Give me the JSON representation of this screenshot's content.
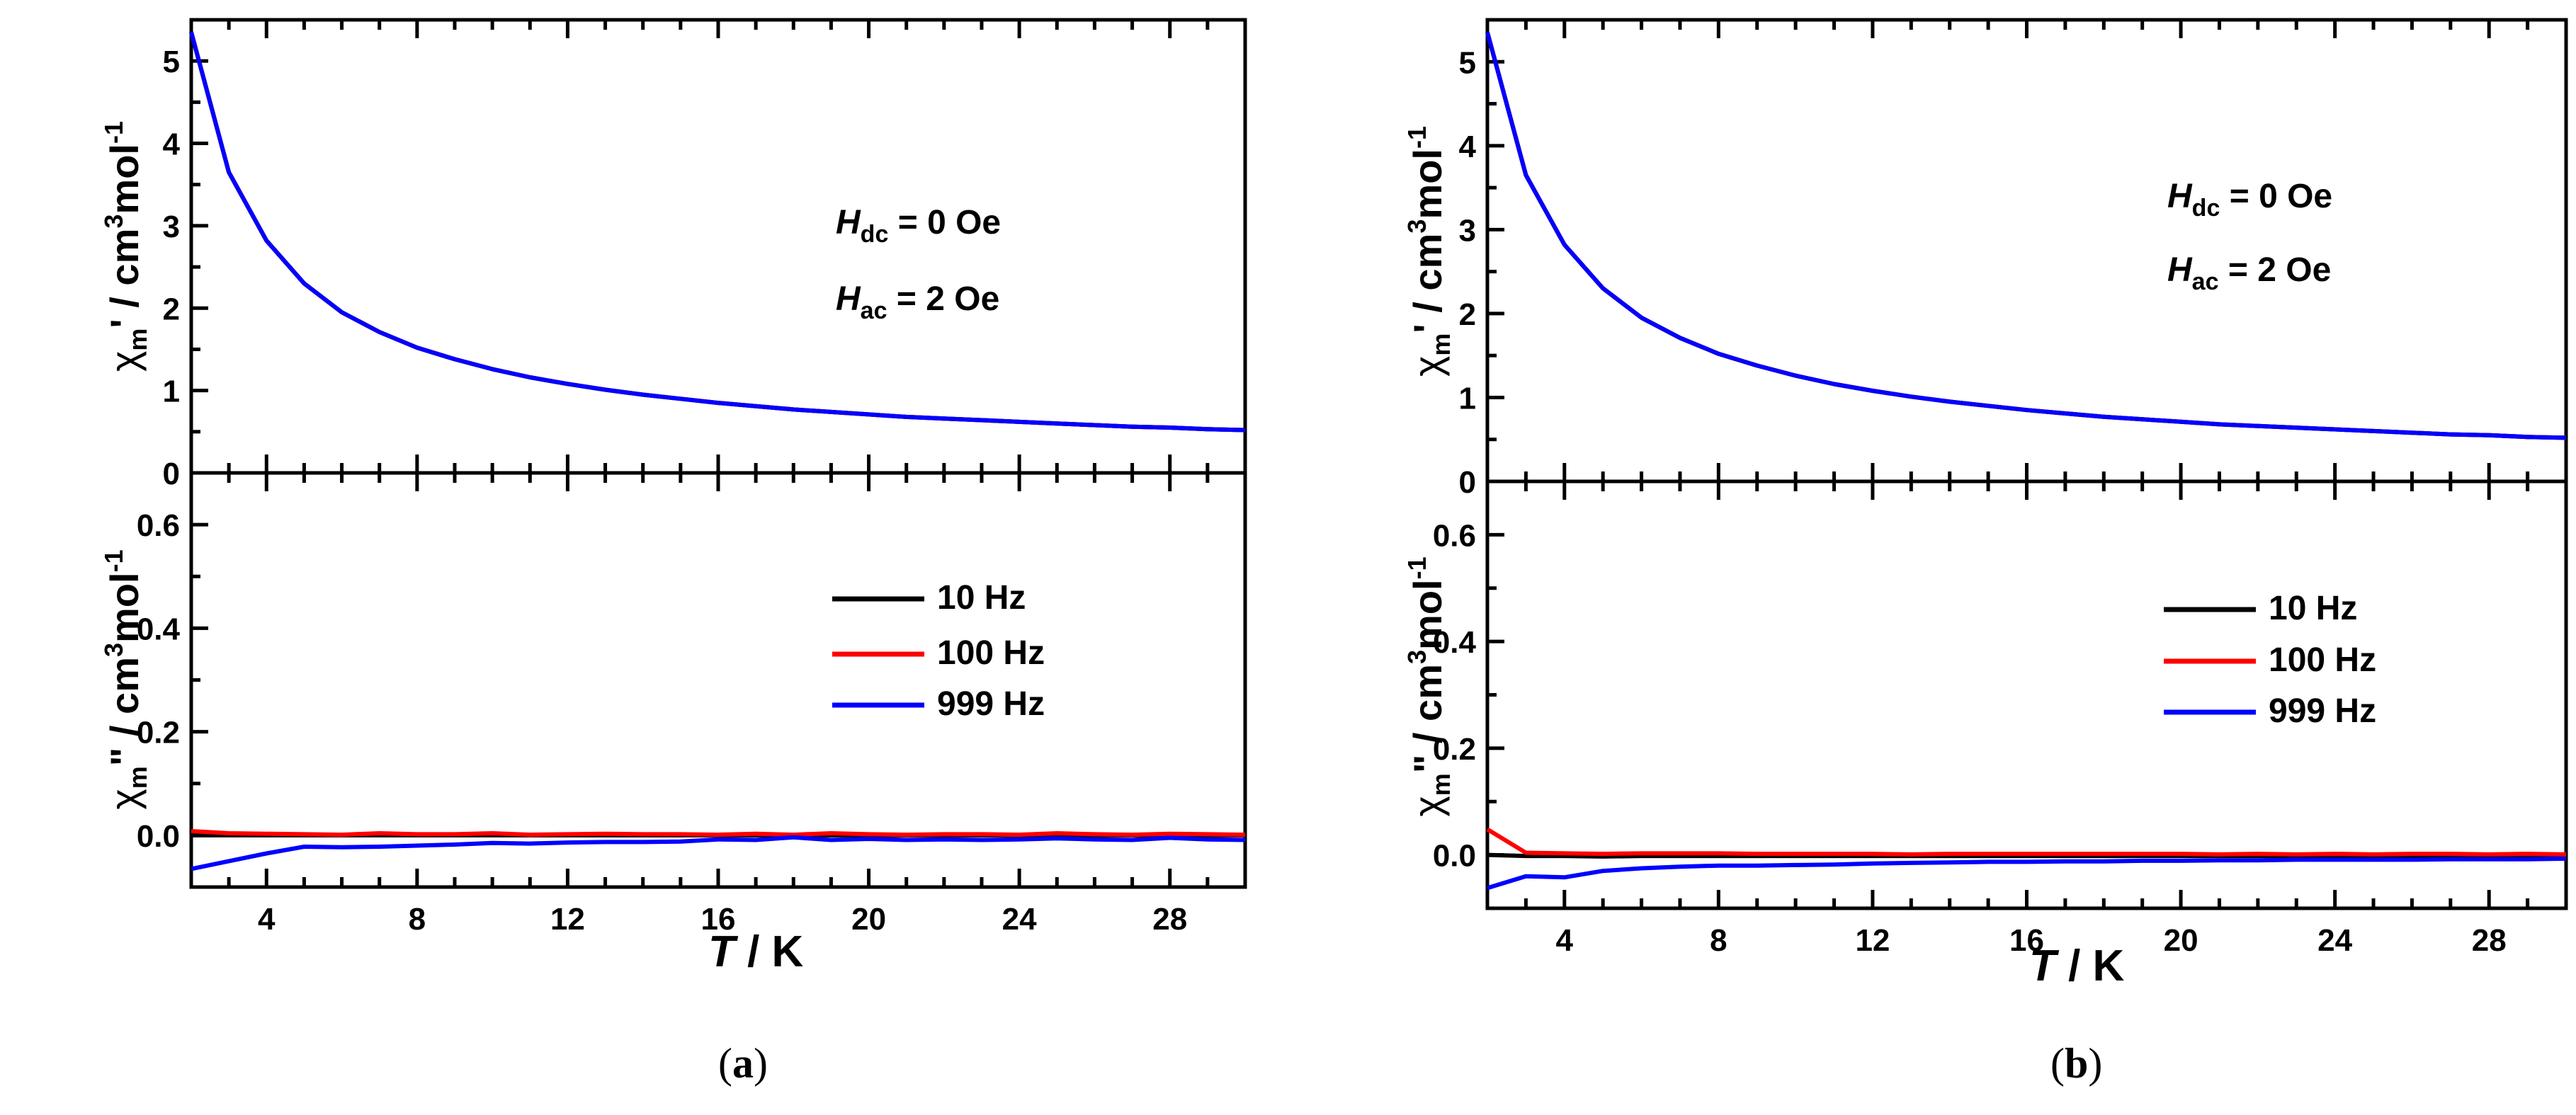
{
  "chart_data": [
    {
      "type": "line",
      "panel_label_open": "(",
      "panel_label": "a",
      "panel_label_close": ")",
      "xlabel_italic": "T",
      "xlabel_rest": " / K",
      "xlim": [
        2,
        30
      ],
      "x_ticks": [
        4,
        8,
        12,
        16,
        20,
        24,
        28
      ],
      "x_tick_labels": [
        "4",
        "8",
        "12",
        "16",
        "20",
        "24",
        "28"
      ],
      "top": {
        "ylabel_chi": "χ",
        "ylabel_sub": "m",
        "ylabel_prime": "'",
        "ylabel_unit": " / cm",
        "ylabel_sup3": "3",
        "ylabel_mol": "mol",
        "ylabel_sup": "-1",
        "ylim": [
          0,
          5.5
        ],
        "y_ticks": [
          0,
          1,
          2,
          3,
          4,
          5
        ],
        "y_tick_labels": [
          "0",
          "1",
          "2",
          "3",
          "4",
          "5"
        ],
        "annotations": [
          {
            "italic": "H",
            "sub": "dc",
            "text": " = 0 Oe"
          },
          {
            "italic": "H",
            "sub": "ac",
            "text": " = 2 Oe"
          }
        ],
        "x": [
          2,
          3,
          4,
          5,
          6,
          7,
          8,
          9,
          10,
          11,
          12,
          13,
          14,
          15,
          16,
          17,
          18,
          19,
          20,
          21,
          22,
          23,
          24,
          25,
          26,
          27,
          28,
          29,
          30
        ],
        "series": [
          {
            "name": "10 Hz",
            "color": "#000000",
            "values": [
              5.35,
              3.65,
              2.82,
              2.3,
              1.95,
              1.71,
              1.52,
              1.38,
              1.26,
              1.16,
              1.08,
              1.01,
              0.95,
              0.9,
              0.85,
              0.81,
              0.77,
              0.74,
              0.71,
              0.68,
              0.66,
              0.64,
              0.62,
              0.6,
              0.58,
              0.56,
              0.55,
              0.53,
              0.52
            ]
          },
          {
            "name": "100 Hz",
            "color": "#ff0000",
            "values": [
              5.35,
              3.65,
              2.82,
              2.3,
              1.95,
              1.71,
              1.52,
              1.38,
              1.26,
              1.16,
              1.08,
              1.01,
              0.95,
              0.9,
              0.85,
              0.81,
              0.77,
              0.74,
              0.71,
              0.68,
              0.66,
              0.64,
              0.62,
              0.6,
              0.58,
              0.56,
              0.55,
              0.53,
              0.52
            ]
          },
          {
            "name": "999 Hz",
            "color": "#0000ff",
            "values": [
              5.35,
              3.65,
              2.82,
              2.3,
              1.95,
              1.71,
              1.52,
              1.38,
              1.26,
              1.16,
              1.08,
              1.01,
              0.95,
              0.9,
              0.85,
              0.81,
              0.77,
              0.74,
              0.71,
              0.68,
              0.66,
              0.64,
              0.62,
              0.6,
              0.58,
              0.56,
              0.55,
              0.53,
              0.52
            ]
          }
        ]
      },
      "bottom": {
        "ylabel_chi": "χ",
        "ylabel_sub": "m",
        "ylabel_prime": "\"",
        "ylabel_unit": " / cm",
        "ylabel_sup3": "3",
        "ylabel_mol": "mol",
        "ylabel_sup": "-1",
        "ylim": [
          -0.1,
          0.7
        ],
        "y_ticks": [
          0.0,
          0.2,
          0.4,
          0.6
        ],
        "y_tick_labels": [
          "0.0",
          "0.2",
          "0.4",
          "0.6"
        ],
        "legend_position": "center-right",
        "x": [
          2,
          3,
          4,
          5,
          6,
          7,
          8,
          9,
          10,
          11,
          12,
          13,
          14,
          15,
          16,
          17,
          18,
          19,
          20,
          21,
          22,
          23,
          24,
          25,
          26,
          27,
          28,
          29,
          30
        ],
        "series": [
          {
            "name": "10 Hz",
            "color": "#000000",
            "values": [
              0.0,
              0.0,
              0.0,
              0.0,
              0.0,
              0.0,
              0.0,
              0.0,
              0.0,
              0.0,
              0.0,
              0.0,
              0.0,
              0.0,
              0.0,
              0.0,
              0.0,
              0.0,
              0.0,
              0.0,
              0.0,
              0.0,
              0.0,
              0.0,
              0.0,
              0.0,
              0.0,
              0.0,
              0.0
            ]
          },
          {
            "name": "100 Hz",
            "color": "#ff0000",
            "values": [
              0.008,
              0.004,
              0.003,
              0.002,
              0.001,
              0.004,
              0.002,
              0.002,
              0.004,
              0.001,
              0.002,
              0.003,
              0.002,
              0.002,
              0.001,
              0.003,
              0.001,
              0.004,
              0.002,
              0.001,
              0.002,
              0.002,
              0.001,
              0.004,
              0.002,
              0.001,
              0.003,
              0.002,
              0.001
            ]
          },
          {
            "name": "999 Hz",
            "color": "#0000ff",
            "values": [
              -0.065,
              -0.05,
              -0.035,
              -0.022,
              -0.023,
              -0.022,
              -0.02,
              -0.018,
              -0.015,
              -0.016,
              -0.014,
              -0.013,
              -0.013,
              -0.012,
              -0.008,
              -0.009,
              -0.004,
              -0.009,
              -0.007,
              -0.009,
              -0.008,
              -0.009,
              -0.008,
              -0.006,
              -0.008,
              -0.009,
              -0.005,
              -0.008,
              -0.009
            ]
          }
        ]
      }
    },
    {
      "type": "line",
      "panel_label_open": "(",
      "panel_label": "b",
      "panel_label_close": ")",
      "xlabel_italic": "T",
      "xlabel_rest": " / K",
      "xlim": [
        2,
        30
      ],
      "x_ticks": [
        4,
        8,
        12,
        16,
        20,
        24,
        28
      ],
      "x_tick_labels": [
        "4",
        "8",
        "12",
        "16",
        "20",
        "24",
        "28"
      ],
      "top": {
        "ylabel_chi": "χ",
        "ylabel_sub": "m",
        "ylabel_prime": "'",
        "ylabel_unit": " / cm",
        "ylabel_sup3": "3",
        "ylabel_mol": "mol",
        "ylabel_sup": "-1",
        "ylim": [
          0,
          5.5
        ],
        "y_ticks": [
          0,
          1,
          2,
          3,
          4,
          5
        ],
        "y_tick_labels": [
          "0",
          "1",
          "2",
          "3",
          "4",
          "5"
        ],
        "annotations": [
          {
            "italic": "H",
            "sub": "dc",
            "text": " = 0 Oe"
          },
          {
            "italic": "H",
            "sub": "ac",
            "text": " = 2 Oe"
          }
        ],
        "x": [
          2,
          3,
          4,
          5,
          6,
          7,
          8,
          9,
          10,
          11,
          12,
          13,
          14,
          15,
          16,
          17,
          18,
          19,
          20,
          21,
          22,
          23,
          24,
          25,
          26,
          27,
          28,
          29,
          30
        ],
        "series": [
          {
            "name": "10 Hz",
            "color": "#000000",
            "values": [
              5.35,
              3.65,
              2.82,
              2.3,
              1.95,
              1.71,
              1.52,
              1.38,
              1.26,
              1.16,
              1.08,
              1.01,
              0.95,
              0.9,
              0.85,
              0.81,
              0.77,
              0.74,
              0.71,
              0.68,
              0.66,
              0.64,
              0.62,
              0.6,
              0.58,
              0.56,
              0.55,
              0.53,
              0.52
            ]
          },
          {
            "name": "100 Hz",
            "color": "#ff0000",
            "values": [
              5.35,
              3.65,
              2.82,
              2.3,
              1.95,
              1.71,
              1.52,
              1.38,
              1.26,
              1.16,
              1.08,
              1.01,
              0.95,
              0.9,
              0.85,
              0.81,
              0.77,
              0.74,
              0.71,
              0.68,
              0.66,
              0.64,
              0.62,
              0.6,
              0.58,
              0.56,
              0.55,
              0.53,
              0.52
            ]
          },
          {
            "name": "999 Hz",
            "color": "#0000ff",
            "values": [
              5.35,
              3.65,
              2.82,
              2.3,
              1.95,
              1.71,
              1.52,
              1.38,
              1.26,
              1.16,
              1.08,
              1.01,
              0.95,
              0.9,
              0.85,
              0.81,
              0.77,
              0.74,
              0.71,
              0.68,
              0.66,
              0.64,
              0.62,
              0.6,
              0.58,
              0.56,
              0.55,
              0.53,
              0.52
            ]
          }
        ]
      },
      "bottom": {
        "ylabel_chi": "χ",
        "ylabel_sub": "m",
        "ylabel_prime": "\"",
        "ylabel_unit": " / cm",
        "ylabel_sup3": "3",
        "ylabel_mol": "mol",
        "ylabel_sup": "-1",
        "ylim": [
          -0.1,
          0.7
        ],
        "y_ticks": [
          0.0,
          0.2,
          0.4,
          0.6
        ],
        "y_tick_labels": [
          "0.0",
          "0.2",
          "0.4",
          "0.6"
        ],
        "legend_position": "center-right",
        "x": [
          2,
          3,
          4,
          5,
          6,
          7,
          8,
          9,
          10,
          11,
          12,
          13,
          14,
          15,
          16,
          17,
          18,
          19,
          20,
          21,
          22,
          23,
          24,
          25,
          26,
          27,
          28,
          29,
          30
        ],
        "series": [
          {
            "name": "10 Hz",
            "color": "#000000",
            "values": [
              0.0,
              -0.002,
              -0.002,
              -0.003,
              -0.002,
              -0.002,
              -0.002,
              -0.002,
              -0.002,
              -0.002,
              -0.002,
              -0.002,
              -0.002,
              -0.002,
              -0.002,
              -0.002,
              -0.002,
              -0.002,
              -0.002,
              -0.002,
              -0.002,
              -0.002,
              -0.002,
              -0.002,
              -0.002,
              -0.002,
              -0.002,
              -0.002,
              -0.002
            ]
          },
          {
            "name": "100 Hz",
            "color": "#ff0000",
            "values": [
              0.048,
              0.004,
              0.003,
              0.002,
              0.003,
              0.003,
              0.003,
              0.002,
              0.002,
              0.002,
              0.002,
              0.001,
              0.002,
              0.002,
              0.002,
              0.002,
              0.002,
              0.002,
              0.002,
              0.001,
              0.002,
              0.001,
              0.002,
              0.001,
              0.002,
              0.002,
              0.001,
              0.002,
              0.001
            ]
          },
          {
            "name": "999 Hz",
            "color": "#0000ff",
            "values": [
              -0.062,
              -0.04,
              -0.042,
              -0.03,
              -0.025,
              -0.022,
              -0.02,
              -0.02,
              -0.019,
              -0.018,
              -0.016,
              -0.015,
              -0.014,
              -0.013,
              -0.013,
              -0.012,
              -0.012,
              -0.011,
              -0.011,
              -0.01,
              -0.01,
              -0.009,
              -0.009,
              -0.009,
              -0.009,
              -0.008,
              -0.008,
              -0.008,
              -0.007
            ]
          }
        ]
      }
    }
  ]
}
